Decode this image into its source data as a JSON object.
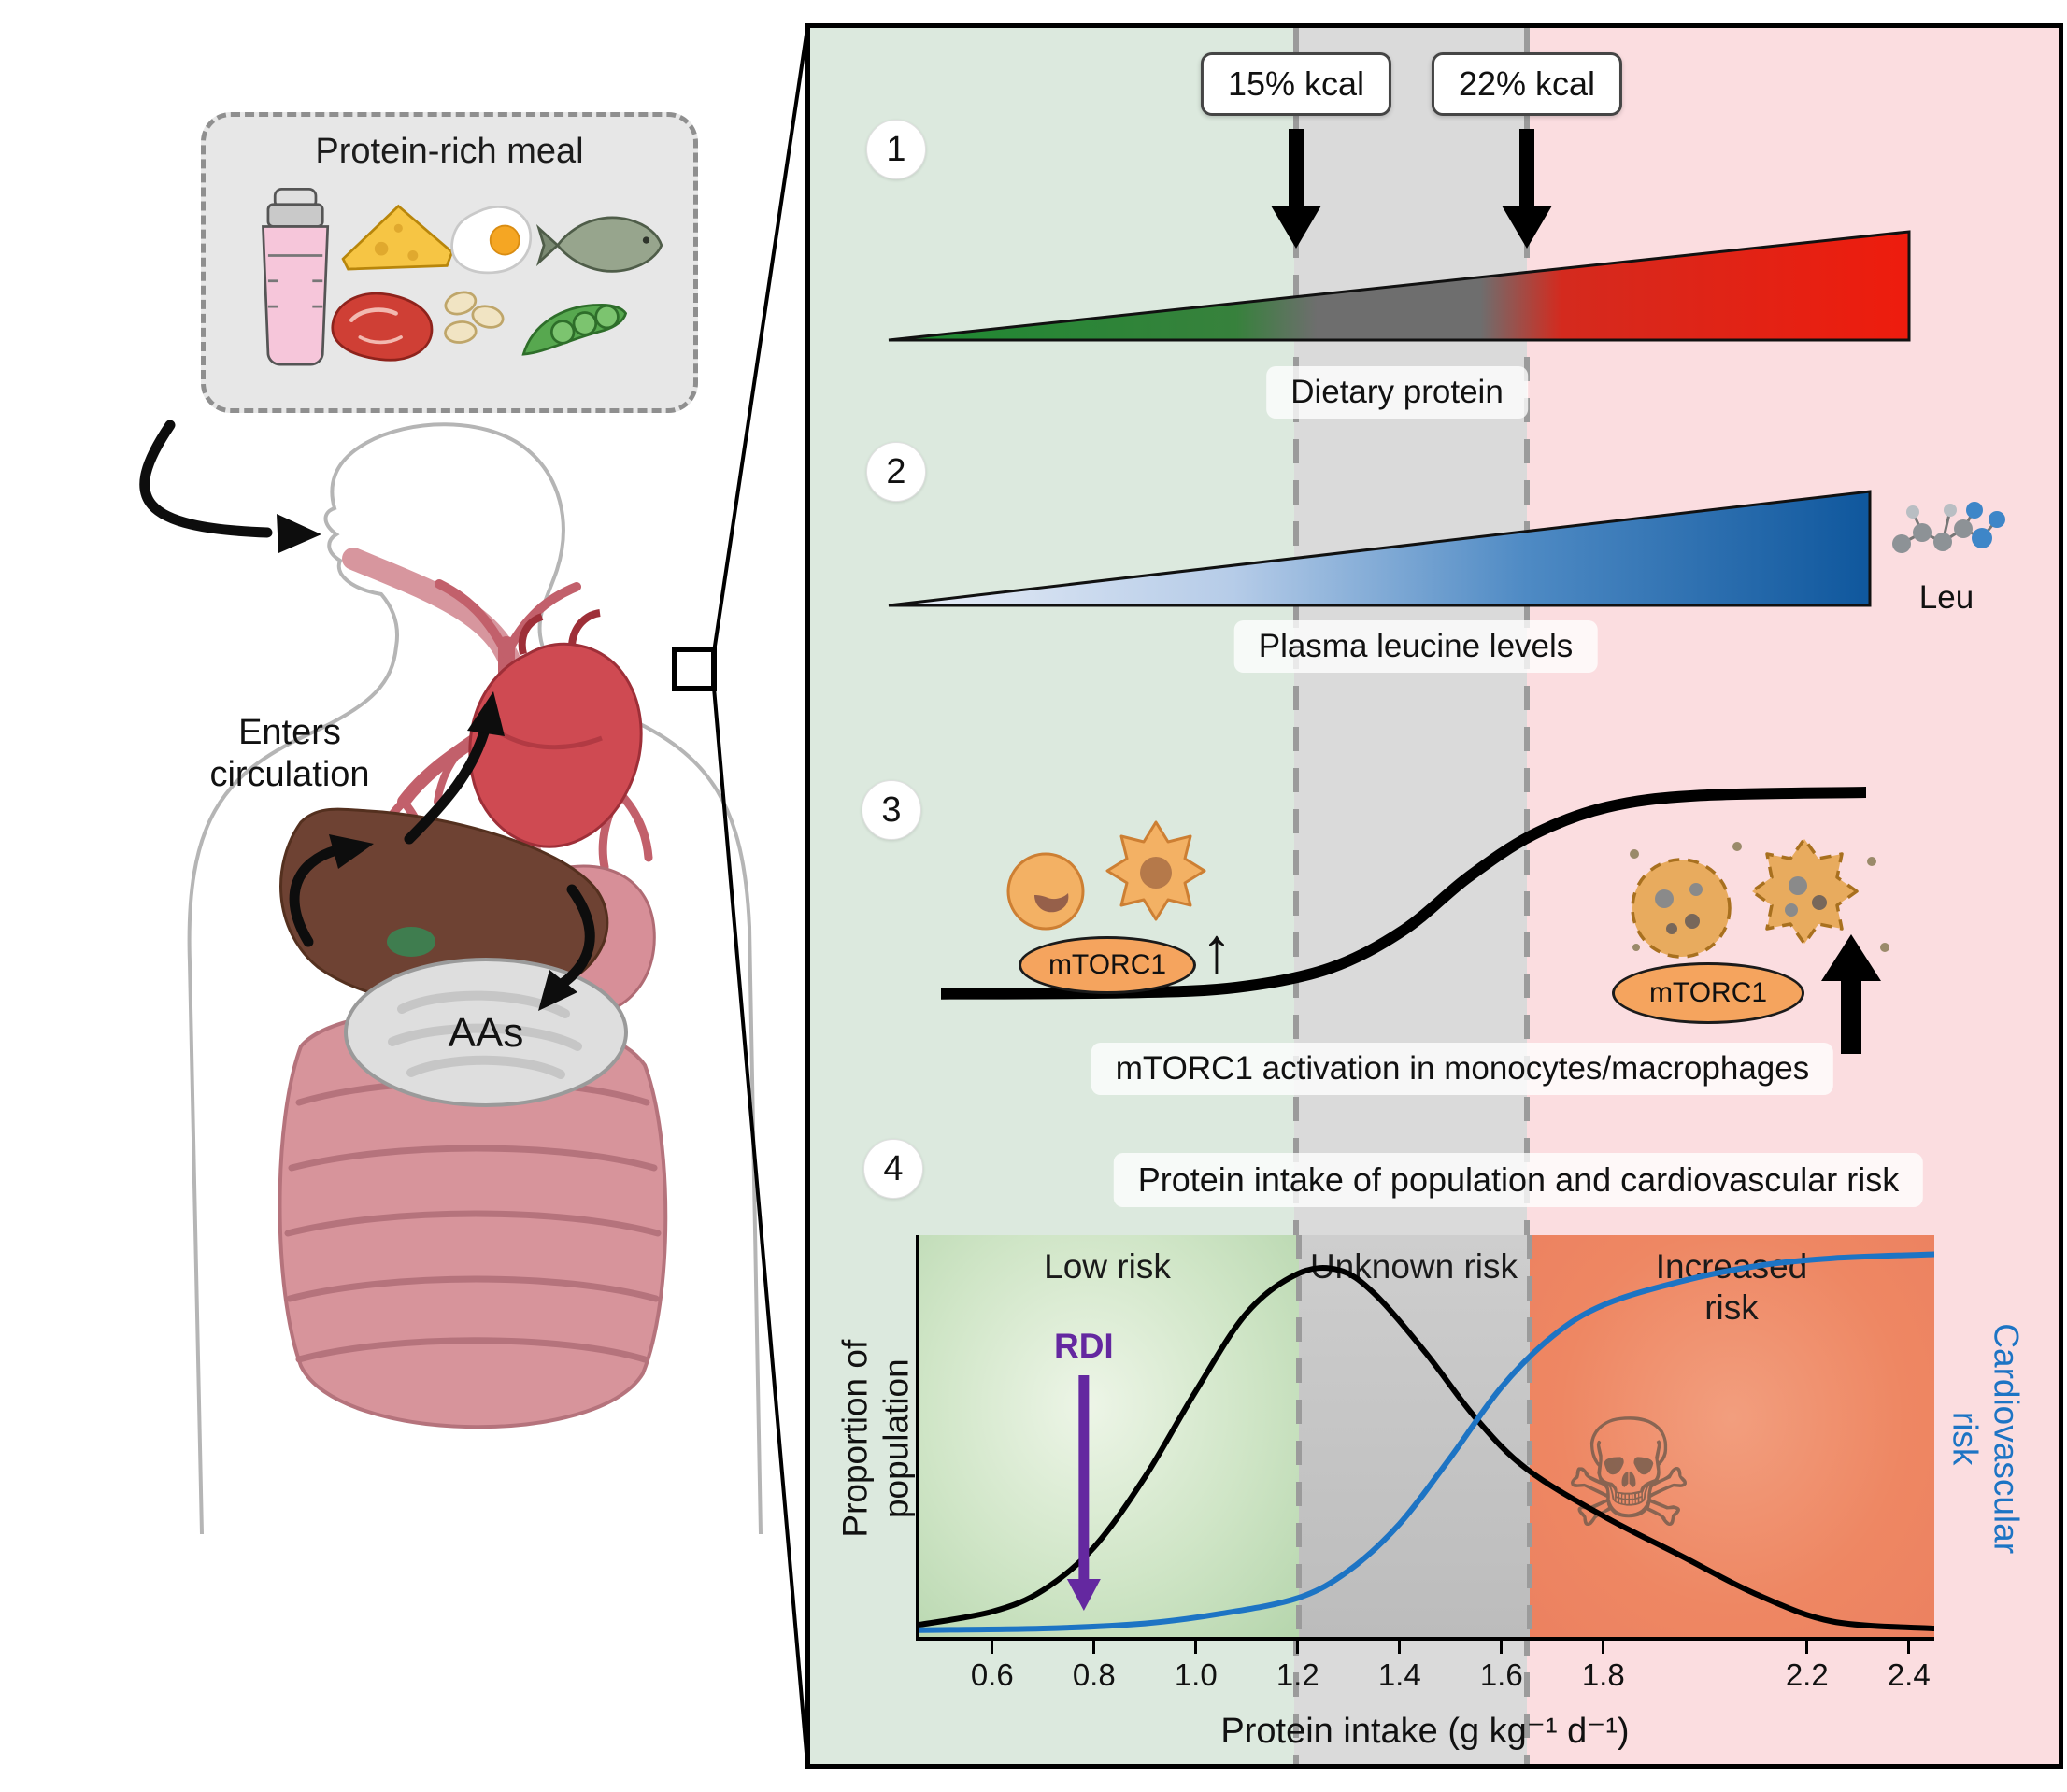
{
  "colors": {
    "low_protein_zone": "#dce9de",
    "unknown_zone": "#dadada",
    "high_protein_zone": "#fbdde0",
    "low_risk_fill": "#cfe5c6",
    "unknown_risk_fill": "#c5c5c5",
    "increased_risk_fill": "#ee8763",
    "population_curve": "#000000",
    "risk_curve": "#1d74c4",
    "rdi_purple": "#6428a0",
    "mtorc1_orange": "#f5a45e",
    "wedge1_gradient": [
      "#1d8a31",
      "#6e6e6e",
      "#ee1c0d"
    ],
    "wedge2_gradient": [
      "#e9eef7",
      "#0f579d"
    ]
  },
  "icons": {
    "skull": "☠",
    "up_arrow": "↑"
  },
  "left": {
    "meal_title": "Protein-rich meal",
    "meal_items": [
      "protein shake",
      "cheese",
      "fried egg",
      "fish",
      "meat",
      "beans",
      "pea pod"
    ],
    "enters_circulation": "Enters circulation",
    "aas_label": "AAs"
  },
  "panel": {
    "kcal_left": "15% kcal",
    "kcal_right": "22% kcal",
    "steps": {
      "s1": {
        "num": "1",
        "label": "Dietary protein"
      },
      "s2": {
        "num": "2",
        "label": "Plasma leucine levels",
        "molecule_label": "Leu"
      },
      "s3": {
        "num": "3",
        "label": "mTORC1 activation in monocytes/macrophages",
        "mtorc1_left": "mTORC1",
        "mtorc1_right": "mTORC1",
        "curve": [
          [
            0,
            0.05
          ],
          [
            0.2,
            0.055
          ],
          [
            0.32,
            0.08
          ],
          [
            0.42,
            0.17
          ],
          [
            0.5,
            0.35
          ],
          [
            0.57,
            0.6
          ],
          [
            0.64,
            0.8
          ],
          [
            0.72,
            0.93
          ],
          [
            0.82,
            0.985
          ],
          [
            1,
            1
          ]
        ]
      },
      "s4": {
        "num": "4",
        "label": "Protein intake of population and cardiovascular risk"
      }
    }
  },
  "chart_data": {
    "type": "line",
    "title": "Protein intake of population and cardiovascular risk",
    "xlabel": "Protein intake (g kg⁻¹ d⁻¹)",
    "ylabel_left": [
      "Proportion of",
      "population"
    ],
    "ylabel_right": [
      "Cardiovascular",
      "risk"
    ],
    "x_range": [
      0.45,
      2.45
    ],
    "x_ticks": [
      "0.6",
      "0.8",
      "1.0",
      "1.2",
      "1.4",
      "1.6",
      "1.8",
      "2.2",
      "2.4"
    ],
    "grid": false,
    "zones": [
      {
        "label": "Low risk",
        "x_from": 0.45,
        "x_to": 1.2,
        "color": "green"
      },
      {
        "label": "Unknown risk",
        "x_from": 1.2,
        "x_to": 1.66,
        "color": "gray"
      },
      {
        "label": "Increased risk",
        "x_from": 1.66,
        "x_to": 2.45,
        "color": "orange"
      }
    ],
    "rdi": {
      "label": "RDI",
      "x": 0.78
    },
    "series": [
      {
        "name": "Proportion of population",
        "color": "#000000",
        "points": [
          [
            0.45,
            0.02
          ],
          [
            0.6,
            0.055
          ],
          [
            0.7,
            0.11
          ],
          [
            0.8,
            0.22
          ],
          [
            0.9,
            0.4
          ],
          [
            1.0,
            0.62
          ],
          [
            1.1,
            0.82
          ],
          [
            1.2,
            0.92
          ],
          [
            1.28,
            0.93
          ],
          [
            1.35,
            0.87
          ],
          [
            1.45,
            0.72
          ],
          [
            1.55,
            0.55
          ],
          [
            1.65,
            0.42
          ],
          [
            1.8,
            0.3
          ],
          [
            1.95,
            0.2
          ],
          [
            2.1,
            0.1
          ],
          [
            2.25,
            0.03
          ],
          [
            2.45,
            0.012
          ]
        ]
      },
      {
        "name": "Cardiovascular risk",
        "color": "#1d74c4",
        "points": [
          [
            0.45,
            0.008
          ],
          [
            0.7,
            0.012
          ],
          [
            0.9,
            0.025
          ],
          [
            1.05,
            0.05
          ],
          [
            1.2,
            0.09
          ],
          [
            1.3,
            0.16
          ],
          [
            1.4,
            0.28
          ],
          [
            1.5,
            0.45
          ],
          [
            1.6,
            0.63
          ],
          [
            1.7,
            0.76
          ],
          [
            1.8,
            0.84
          ],
          [
            1.95,
            0.9
          ],
          [
            2.1,
            0.94
          ],
          [
            2.25,
            0.96
          ],
          [
            2.45,
            0.97
          ]
        ]
      }
    ]
  }
}
